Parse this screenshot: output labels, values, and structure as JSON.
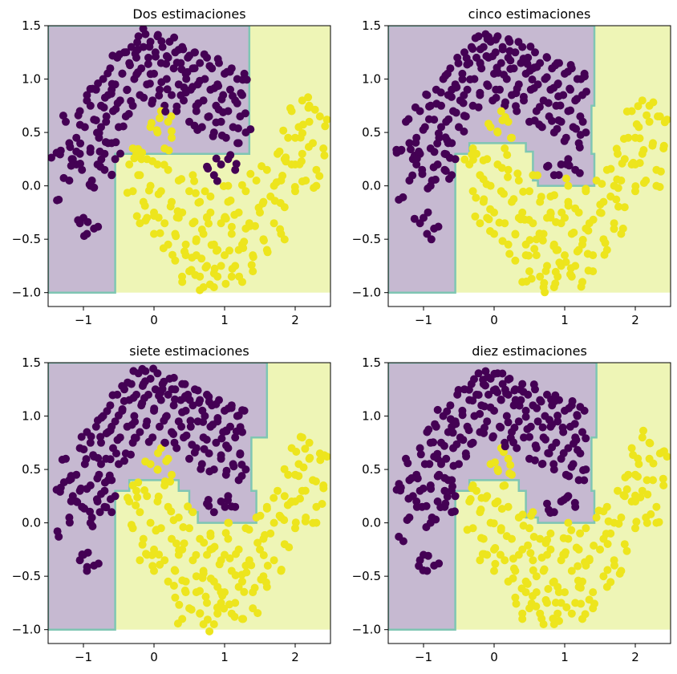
{
  "figure": {
    "background": "#ffffff"
  },
  "colors": {
    "class0_point": "#440154",
    "class1_point": "#ede51d",
    "region0": "#c6b9d1",
    "region1": "#eef5b6",
    "boundary": "#7fc6b3"
  },
  "chart_data": [
    {
      "type": "scatter",
      "title": "Dos estimaciones",
      "xlim": [
        -1.5,
        2.5
      ],
      "ylim": [
        -1.13,
        1.5
      ],
      "xticks": [
        -1,
        0,
        1,
        2
      ],
      "yticks": [
        1.5,
        1.0,
        0.5,
        0.0,
        -0.5,
        -1.0
      ],
      "xtick_labels": [
        "−1",
        "0",
        "1",
        "2"
      ],
      "ytick_labels": [
        "1.5",
        "1.0",
        "0.5",
        "0.0",
        "−0.5",
        "−1.0"
      ],
      "decision_region_extent": {
        "x": [
          -1.5,
          2.5
        ],
        "y": [
          -1.0,
          1.5
        ]
      },
      "class0_region": [
        [
          -1.5,
          -1.0
        ],
        [
          -0.55,
          -1.0
        ],
        [
          -0.55,
          0.3
        ],
        [
          1.35,
          0.3
        ],
        [
          1.35,
          1.5
        ],
        [
          -1.5,
          1.5
        ]
      ],
      "grid": false,
      "legend": "none"
    },
    {
      "type": "scatter",
      "title": "cinco estimaciones",
      "xlim": [
        -1.5,
        2.5
      ],
      "ylim": [
        -1.13,
        1.5
      ],
      "xticks": [
        -1,
        0,
        1,
        2
      ],
      "yticks": [
        1.5,
        1.0,
        0.5,
        0.0,
        -0.5,
        -1.0
      ],
      "xtick_labels": [
        "−1",
        "0",
        "1",
        "2"
      ],
      "ytick_labels": [
        "1.5",
        "1.0",
        "0.5",
        "0.0",
        "−0.5",
        "−1.0"
      ],
      "decision_region_extent": {
        "x": [
          -1.5,
          2.5
        ],
        "y": [
          -1.0,
          1.5
        ]
      },
      "class0_region": [
        [
          -1.5,
          -1.0
        ],
        [
          -0.55,
          -1.0
        ],
        [
          -0.55,
          0.3
        ],
        [
          -0.35,
          0.3
        ],
        [
          -0.35,
          0.4
        ],
        [
          0.45,
          0.4
        ],
        [
          0.45,
          0.32
        ],
        [
          0.55,
          0.32
        ],
        [
          0.55,
          0.05
        ],
        [
          0.62,
          0.05
        ],
        [
          0.62,
          0.0
        ],
        [
          1.42,
          0.0
        ],
        [
          1.42,
          0.3
        ],
        [
          1.38,
          0.3
        ],
        [
          1.38,
          0.75
        ],
        [
          1.42,
          0.75
        ],
        [
          1.42,
          1.5
        ],
        [
          -1.5,
          1.5
        ]
      ],
      "grid": false,
      "legend": "none"
    },
    {
      "type": "scatter",
      "title": "siete estimaciones",
      "xlim": [
        -1.5,
        2.5
      ],
      "ylim": [
        -1.13,
        1.5
      ],
      "xticks": [
        -1,
        0,
        1,
        2
      ],
      "yticks": [
        1.5,
        1.0,
        0.5,
        0.0,
        -0.5,
        -1.0
      ],
      "xtick_labels": [
        "−1",
        "0",
        "1",
        "2"
      ],
      "ytick_labels": [
        "1.5",
        "1.0",
        "0.5",
        "0.0",
        "−0.5",
        "−1.0"
      ],
      "decision_region_extent": {
        "x": [
          -1.5,
          2.5
        ],
        "y": [
          -1.0,
          1.5
        ]
      },
      "class0_region": [
        [
          -1.5,
          -1.0
        ],
        [
          -0.55,
          -1.0
        ],
        [
          -0.55,
          0.3
        ],
        [
          -0.35,
          0.3
        ],
        [
          -0.35,
          0.4
        ],
        [
          0.35,
          0.4
        ],
        [
          0.35,
          0.3
        ],
        [
          0.5,
          0.3
        ],
        [
          0.5,
          0.1
        ],
        [
          0.62,
          0.1
        ],
        [
          0.62,
          0.0
        ],
        [
          1.45,
          0.0
        ],
        [
          1.45,
          0.3
        ],
        [
          1.38,
          0.3
        ],
        [
          1.38,
          0.8
        ],
        [
          1.6,
          0.8
        ],
        [
          1.6,
          1.5
        ],
        [
          -1.5,
          1.5
        ]
      ],
      "grid": false,
      "legend": "none"
    },
    {
      "type": "scatter",
      "title": "diez estimaciones",
      "xlim": [
        -1.5,
        2.5
      ],
      "ylim": [
        -1.13,
        1.5
      ],
      "xticks": [
        -1,
        0,
        1,
        2
      ],
      "yticks": [
        1.5,
        1.0,
        0.5,
        0.0,
        -0.5,
        -1.0
      ],
      "xtick_labels": [
        "−1",
        "0",
        "1",
        "2"
      ],
      "ytick_labels": [
        "1.5",
        "1.0",
        "0.5",
        "0.0",
        "−0.5",
        "−1.0"
      ],
      "decision_region_extent": {
        "x": [
          -1.5,
          2.5
        ],
        "y": [
          -1.0,
          1.5
        ]
      },
      "class0_region": [
        [
          -1.5,
          -1.0
        ],
        [
          -0.55,
          -1.0
        ],
        [
          -0.55,
          0.3
        ],
        [
          -0.35,
          0.3
        ],
        [
          -0.35,
          0.4
        ],
        [
          0.35,
          0.4
        ],
        [
          0.35,
          0.3
        ],
        [
          0.45,
          0.3
        ],
        [
          0.45,
          0.05
        ],
        [
          0.62,
          0.05
        ],
        [
          0.62,
          0.0
        ],
        [
          1.42,
          0.0
        ],
        [
          1.42,
          0.3
        ],
        [
          1.38,
          0.3
        ],
        [
          1.38,
          0.8
        ],
        [
          1.45,
          0.8
        ],
        [
          1.45,
          1.5
        ],
        [
          -1.5,
          1.5
        ]
      ],
      "grid": false,
      "legend": "none"
    }
  ],
  "scatter_points": {
    "class0": [
      [
        -1.38,
        0.31
      ],
      [
        -1.32,
        0.33
      ],
      [
        -1.35,
        -0.13
      ],
      [
        -1.25,
        0.6
      ],
      [
        -1.2,
        0.05
      ],
      [
        -1.15,
        0.25
      ],
      [
        -1.1,
        0.45
      ],
      [
        -1.05,
        0.7
      ],
      [
        -1.02,
        0.15
      ],
      [
        -0.98,
        0.55
      ],
      [
        -0.95,
        0.85
      ],
      [
        -0.9,
        0.35
      ],
      [
        -0.88,
        0.05
      ],
      [
        -0.85,
        0.62
      ],
      [
        -0.82,
        0.9
      ],
      [
        -0.8,
        0.2
      ],
      [
        -0.78,
        0.45
      ],
      [
        -0.75,
        0.75
      ],
      [
        -0.72,
        1.0
      ],
      [
        -0.7,
        0.3
      ],
      [
        -0.68,
        0.6
      ],
      [
        -0.65,
        0.85
      ],
      [
        -0.62,
        1.1
      ],
      [
        -0.6,
        0.4
      ],
      [
        -0.58,
        0.7
      ],
      [
        -0.55,
        0.95
      ],
      [
        -0.52,
        1.2
      ],
      [
        -0.5,
        0.55
      ],
      [
        -0.48,
        0.8
      ],
      [
        -0.45,
        1.05
      ],
      [
        -0.42,
        1.25
      ],
      [
        -0.4,
        0.65
      ],
      [
        -0.38,
        0.9
      ],
      [
        -0.35,
        1.15
      ],
      [
        -0.32,
        1.3
      ],
      [
        -0.3,
        0.75
      ],
      [
        -0.28,
        1.0
      ],
      [
        -0.25,
        1.2
      ],
      [
        -0.22,
        1.4
      ],
      [
        -0.2,
        0.85
      ],
      [
        -0.18,
        1.1
      ],
      [
        -0.15,
        1.3
      ],
      [
        -0.12,
        1.42
      ],
      [
        -0.1,
        0.95
      ],
      [
        -0.08,
        1.2
      ],
      [
        -0.05,
        1.35
      ],
      [
        -0.02,
        0.8
      ],
      [
        0.0,
        1.05
      ],
      [
        0.02,
        1.25
      ],
      [
        0.05,
        1.4
      ],
      [
        0.08,
        0.9
      ],
      [
        0.1,
        1.15
      ],
      [
        0.12,
        1.3
      ],
      [
        0.15,
        0.75
      ],
      [
        0.18,
        1.0
      ],
      [
        0.2,
        1.2
      ],
      [
        0.22,
        1.35
      ],
      [
        0.25,
        0.85
      ],
      [
        0.28,
        1.1
      ],
      [
        0.3,
        1.25
      ],
      [
        0.32,
        0.7
      ],
      [
        0.35,
        0.95
      ],
      [
        0.38,
        1.15
      ],
      [
        0.4,
        1.3
      ],
      [
        0.42,
        0.8
      ],
      [
        0.45,
        1.05
      ],
      [
        0.48,
        1.2
      ],
      [
        0.5,
        0.6
      ],
      [
        0.52,
        0.9
      ],
      [
        0.55,
        1.1
      ],
      [
        0.58,
        1.25
      ],
      [
        0.6,
        0.7
      ],
      [
        0.62,
        0.95
      ],
      [
        0.65,
        1.15
      ],
      [
        0.68,
        0.55
      ],
      [
        0.7,
        0.8
      ],
      [
        0.72,
        1.0
      ],
      [
        0.75,
        1.2
      ],
      [
        0.78,
        0.65
      ],
      [
        0.8,
        0.9
      ],
      [
        0.82,
        1.1
      ],
      [
        0.85,
        0.5
      ],
      [
        0.88,
        0.75
      ],
      [
        0.9,
        0.95
      ],
      [
        0.92,
        1.15
      ],
      [
        0.95,
        0.6
      ],
      [
        0.98,
        0.85
      ],
      [
        1.0,
        1.05
      ],
      [
        1.02,
        0.45
      ],
      [
        1.05,
        0.7
      ],
      [
        1.08,
        0.9
      ],
      [
        1.1,
        1.1
      ],
      [
        1.12,
        0.55
      ],
      [
        1.15,
        0.8
      ],
      [
        1.18,
        1.0
      ],
      [
        1.2,
        0.4
      ],
      [
        1.22,
        0.65
      ],
      [
        1.25,
        0.85
      ],
      [
        1.28,
        1.05
      ],
      [
        1.3,
        0.5
      ],
      [
        -1.0,
        -0.3
      ],
      [
        -0.95,
        -0.45
      ],
      [
        -0.85,
        -0.4
      ],
      [
        -0.9,
        0.0
      ],
      [
        -1.05,
        -0.35
      ],
      [
        -0.7,
        0.15
      ],
      [
        -0.6,
        0.1
      ],
      [
        -0.65,
        0.4
      ],
      [
        -1.1,
        0.2
      ],
      [
        -0.75,
        0.55
      ],
      [
        -0.6,
        0.9
      ],
      [
        -0.55,
        0.25
      ],
      [
        -1.2,
        0.4
      ],
      [
        -0.9,
        0.75
      ],
      [
        -1.05,
        0.3
      ],
      [
        0.75,
        0.18
      ],
      [
        0.85,
        0.1
      ],
      [
        0.95,
        0.2
      ],
      [
        1.05,
        0.25
      ],
      [
        1.15,
        0.15
      ]
    ],
    "class1": [
      [
        -0.35,
        0.2
      ],
      [
        -0.3,
        -0.05
      ],
      [
        -0.25,
        0.3
      ],
      [
        -0.2,
        0.1
      ],
      [
        -0.15,
        -0.15
      ],
      [
        -0.1,
        0.25
      ],
      [
        -0.05,
        0.0
      ],
      [
        0.0,
        -0.25
      ],
      [
        0.05,
        0.2
      ],
      [
        0.1,
        -0.05
      ],
      [
        0.15,
        -0.35
      ],
      [
        0.2,
        0.15
      ],
      [
        0.25,
        -0.15
      ],
      [
        0.3,
        -0.45
      ],
      [
        0.35,
        0.05
      ],
      [
        0.4,
        -0.25
      ],
      [
        0.45,
        -0.55
      ],
      [
        0.5,
        -0.05
      ],
      [
        0.55,
        -0.35
      ],
      [
        0.6,
        -0.65
      ],
      [
        0.65,
        -0.15
      ],
      [
        0.7,
        -0.45
      ],
      [
        0.75,
        -0.75
      ],
      [
        0.8,
        -0.25
      ],
      [
        0.85,
        -0.55
      ],
      [
        0.9,
        -0.85
      ],
      [
        0.95,
        -0.35
      ],
      [
        1.0,
        -0.65
      ],
      [
        1.05,
        -0.15
      ],
      [
        1.1,
        -0.45
      ],
      [
        1.15,
        -0.75
      ],
      [
        1.2,
        -0.25
      ],
      [
        1.25,
        -0.55
      ],
      [
        1.3,
        -0.05
      ],
      [
        1.35,
        -0.35
      ],
      [
        1.4,
        -0.65
      ],
      [
        1.45,
        0.05
      ],
      [
        1.5,
        -0.25
      ],
      [
        1.55,
        -0.5
      ],
      [
        1.6,
        0.15
      ],
      [
        1.65,
        -0.1
      ],
      [
        1.7,
        -0.35
      ],
      [
        1.75,
        0.3
      ],
      [
        1.8,
        0.05
      ],
      [
        1.85,
        -0.2
      ],
      [
        1.9,
        0.45
      ],
      [
        1.95,
        0.2
      ],
      [
        2.0,
        -0.05
      ],
      [
        2.05,
        0.55
      ],
      [
        2.1,
        0.3
      ],
      [
        2.15,
        0.05
      ],
      [
        2.2,
        0.6
      ],
      [
        2.25,
        0.4
      ],
      [
        2.3,
        0.15
      ],
      [
        2.35,
        0.65
      ],
      [
        2.4,
        0.35
      ],
      [
        2.45,
        0.62
      ],
      [
        2.2,
        0.75
      ],
      [
        2.1,
        0.8
      ],
      [
        1.95,
        0.7
      ],
      [
        0.3,
        -0.7
      ],
      [
        0.5,
        -0.8
      ],
      [
        0.7,
        -0.95
      ],
      [
        0.9,
        -0.6
      ],
      [
        1.1,
        -0.85
      ],
      [
        0.2,
        -0.55
      ],
      [
        0.0,
        -0.45
      ],
      [
        -0.1,
        -0.3
      ],
      [
        0.4,
        -0.9
      ],
      [
        0.6,
        -0.5
      ],
      [
        0.8,
        -0.1
      ],
      [
        1.0,
        -0.3
      ],
      [
        1.2,
        -0.6
      ],
      [
        1.4,
        -0.8
      ],
      [
        0.15,
        0.35
      ],
      [
        0.05,
        0.5
      ],
      [
        0.2,
        0.6
      ],
      [
        0.25,
        0.45
      ],
      [
        -0.05,
        0.55
      ],
      [
        0.1,
        0.7
      ],
      [
        2.0,
        0.45
      ],
      [
        1.85,
        0.25
      ],
      [
        1.7,
        0.0
      ],
      [
        1.55,
        -0.15
      ],
      [
        1.3,
        -0.4
      ],
      [
        0.95,
        -0.75
      ],
      [
        0.35,
        -0.3
      ],
      [
        0.55,
        0.1
      ],
      [
        0.75,
        -0.3
      ],
      [
        1.05,
        0.0
      ],
      [
        -0.2,
        -0.35
      ],
      [
        -0.3,
        0.35
      ],
      [
        0.45,
        -0.65
      ],
      [
        0.65,
        -0.85
      ],
      [
        0.85,
        -0.95
      ],
      [
        1.25,
        -0.9
      ],
      [
        1.6,
        -0.6
      ],
      [
        1.8,
        -0.45
      ],
      [
        2.3,
        0.0
      ],
      [
        2.0,
        0.2
      ]
    ]
  }
}
